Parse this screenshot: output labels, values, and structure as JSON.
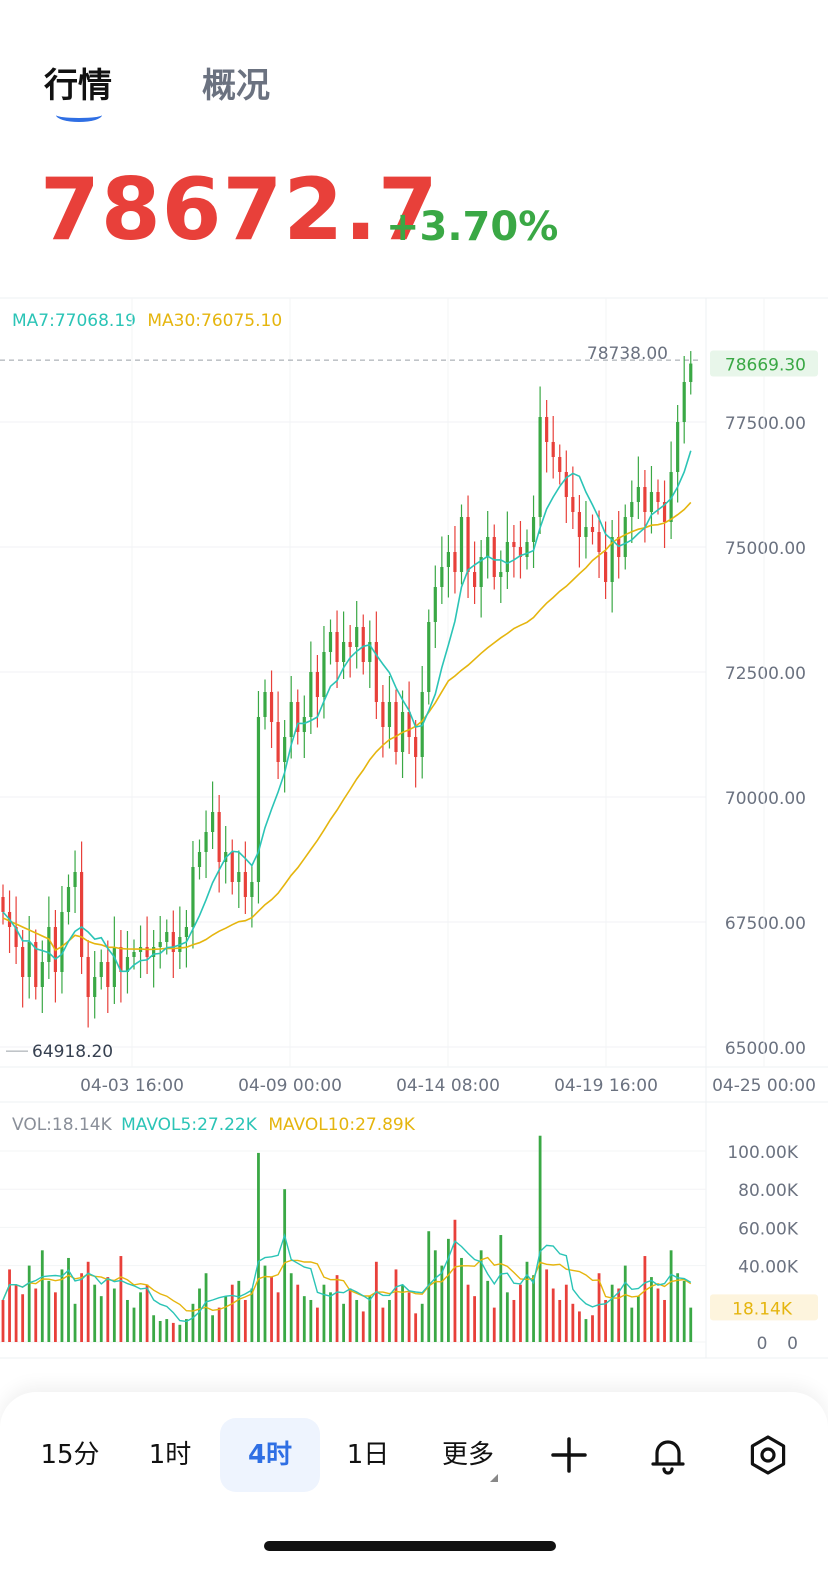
{
  "tabs": [
    {
      "label": "行情",
      "active": true
    },
    {
      "label": "概况",
      "active": false
    }
  ],
  "price": {
    "last": "78672.7",
    "change_pct": "+3.70%"
  },
  "colors": {
    "up": "#3aa845",
    "down": "#e8403a",
    "ma7": "#2bc4b6",
    "ma30": "#e5b50e",
    "accent": "#2f6fe4"
  },
  "indicators": {
    "ma7_label": "MA7:77068.19",
    "ma30_label": "MA30:76075.10",
    "vol_label": "VOL:18.14K",
    "mavol5_label": "MAVOL5:27.22K",
    "mavol10_label": "MAVOL10:27.89K"
  },
  "chart_data": {
    "type": "candlestick",
    "y_axis_labels": [
      "77500.00",
      "75000.00",
      "72500.00",
      "70000.00",
      "67500.00",
      "65000.00"
    ],
    "ylim": [
      64700,
      79300
    ],
    "x_axis_labels": [
      "04-03 16:00",
      "04-09 00:00",
      "04-14 08:00",
      "04-19 16:00",
      "04-25 00:00"
    ],
    "high_marker": "78738.00",
    "low_marker": "64918.20",
    "last_price_tag": "78669.30",
    "close_series": [
      67700,
      67400,
      67000,
      66400,
      67100,
      66200,
      66700,
      67400,
      66500,
      67700,
      68200,
      68500,
      66800,
      66000,
      66400,
      66700,
      66200,
      67000,
      66500,
      66800,
      66900,
      67000,
      66800,
      67000,
      67100,
      67300,
      66900,
      67200,
      67400,
      68600,
      68900,
      69300,
      69700,
      68700,
      68900,
      68300,
      68500,
      68000,
      68300,
      71600,
      72100,
      71500,
      70700,
      71200,
      71900,
      71300,
      71600,
      72500,
      72000,
      72900,
      73300,
      72700,
      73100,
      73000,
      73400,
      72700,
      73100,
      71900,
      71400,
      71900,
      70900,
      71700,
      71200,
      70800,
      72100,
      73500,
      74200,
      74600,
      74900,
      74500,
      75600,
      74500,
      74200,
      74800,
      75200,
      74400,
      74500,
      75100,
      75000,
      74800,
      75100,
      75600,
      77600,
      77100,
      76800,
      76500,
      76000,
      75700,
      75200,
      75400,
      75300,
      74900,
      74300,
      75200,
      74800,
      75600,
      75900,
      76200,
      75700,
      76100,
      75900,
      75500,
      76500,
      77500,
      78300,
      78669
    ],
    "volume_axis_labels": [
      "100.00K",
      "80.00K",
      "60.00K",
      "40.00K",
      "18.14K",
      "0"
    ],
    "volume_ylim": [
      0,
      103000
    ],
    "volume_last_tag": "18.14K",
    "volume_series": [
      22,
      38,
      30,
      25,
      40,
      28,
      48,
      32,
      26,
      38,
      44,
      20,
      36,
      42,
      30,
      24,
      34,
      28,
      45,
      22,
      18,
      26,
      30,
      14,
      11,
      12,
      10,
      9,
      12,
      20,
      28,
      36,
      14,
      18,
      24,
      30,
      32,
      22,
      28,
      99,
      40,
      34,
      26,
      80,
      36,
      30,
      24,
      22,
      18,
      30,
      26,
      35,
      20,
      28,
      22,
      16,
      24,
      42,
      18,
      22,
      38,
      30,
      26,
      15,
      20,
      58,
      48,
      40,
      54,
      64,
      44,
      30,
      24,
      48,
      32,
      18,
      56,
      26,
      22,
      30,
      42,
      35,
      108,
      38,
      28,
      22,
      30,
      20,
      16,
      12,
      14,
      36,
      22,
      30,
      28,
      40,
      18,
      24,
      45,
      34,
      28,
      22,
      48,
      36,
      32,
      18
    ]
  },
  "toolbar": {
    "intervals": [
      "15分",
      "1时",
      "4时",
      "1日",
      "更多"
    ],
    "active": "4时",
    "icons": [
      "plus-icon",
      "bell-icon",
      "settings-icon"
    ]
  }
}
